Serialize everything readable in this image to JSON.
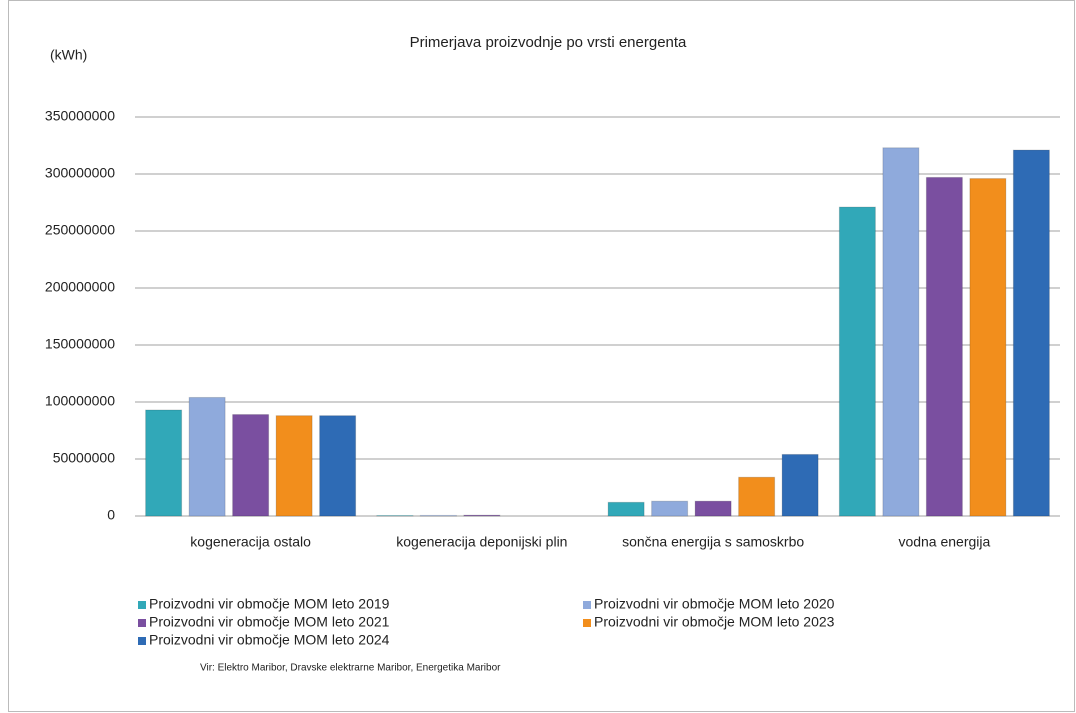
{
  "chart_data": {
    "type": "bar",
    "title": "Primerjava proizvodnje po vrsti energenta",
    "ylabel": "(kWh)",
    "source": "Vir: Elektro Maribor, Dravske elektrarne Maribor, Energetika Maribor",
    "categories": [
      "kogeneracija ostalo",
      "kogeneracija deponijski plin",
      "sončna energija s samoskrbo",
      "vodna energija"
    ],
    "series": [
      {
        "name": "Proizvodni vir območje MOM leto 2019",
        "color": "#31a8b8",
        "values": [
          93000000,
          400000,
          12000000,
          271000000
        ]
      },
      {
        "name": "Proizvodni vir območje MOM leto 2020",
        "color": "#8faadc",
        "values": [
          104000000,
          500000,
          13000000,
          323000000
        ]
      },
      {
        "name": "Proizvodni vir območje MOM leto 2021",
        "color": "#7a4fa0",
        "values": [
          89000000,
          700000,
          13000000,
          297000000
        ]
      },
      {
        "name": "Proizvodni vir območje MOM leto 2023",
        "color": "#f28e1c",
        "values": [
          88000000,
          0,
          34000000,
          296000000
        ]
      },
      {
        "name": "Proizvodni vir območje MOM leto 2024",
        "color": "#2e6bb5",
        "values": [
          88000000,
          0,
          54000000,
          321000000
        ]
      }
    ],
    "ylim": [
      0,
      350000000
    ],
    "yticks": [
      0,
      50000000,
      100000000,
      150000000,
      200000000,
      250000000,
      300000000,
      350000000
    ],
    "grid": true
  }
}
